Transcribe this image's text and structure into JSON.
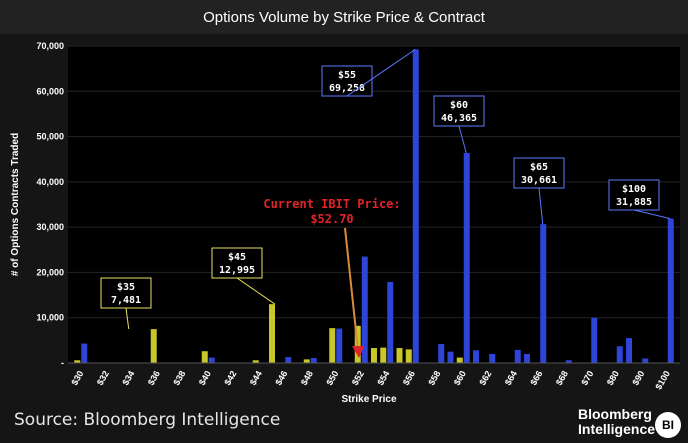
{
  "title": "Options Volume by Strike Price & Contract",
  "source": "Source: Bloomberg Intelligence",
  "brand": {
    "line1": "Bloomberg",
    "line2": "Intelligence",
    "badge": "BI"
  },
  "chart_data": {
    "type": "bar",
    "ylabel": "# of Options Contracts Traded",
    "xlabel": "Strike Price",
    "ylim": [
      0,
      70000
    ],
    "yticks": [
      0,
      10000,
      20000,
      30000,
      40000,
      50000,
      60000,
      70000
    ],
    "ytick_labels": [
      "-",
      "10,000",
      "20,000",
      "30,000",
      "40,000",
      "50,000",
      "60,000",
      "70,000"
    ],
    "x_tick_labels": [
      "$30",
      "$32",
      "$34",
      "$36",
      "$38",
      "$40",
      "$42",
      "$44",
      "$46",
      "$48",
      "$50",
      "$52",
      "$54",
      "$56",
      "$58",
      "$60",
      "$62",
      "$64",
      "$66",
      "$68",
      "$70",
      "$80",
      "$90",
      "$100"
    ],
    "series": [
      {
        "name": "Contract A",
        "color": "#c9c62a",
        "values": [
          600,
          0,
          0,
          7481,
          0,
          2600,
          0,
          600,
          0,
          800,
          7700,
          8200,
          3400,
          3000,
          0,
          1200,
          0,
          0,
          0,
          0,
          0,
          0,
          0,
          0
        ]
      },
      {
        "name": "Contract B",
        "color": "#2f45d8",
        "values": [
          4300,
          0,
          0,
          0,
          0,
          1200,
          0,
          0,
          1300,
          1100,
          7600,
          23500,
          17900,
          69258,
          4200,
          46365,
          2000,
          2900,
          30661,
          600,
          10000,
          3700,
          1000,
          31885
        ]
      }
    ],
    "extra_bars": [
      {
        "strike": "$44",
        "color": "#c9c62a",
        "value": 12995
      },
      {
        "strike": "$54",
        "color": "#c9c62a",
        "value": 3300
      },
      {
        "strike": "$52",
        "color": "#c9c62a",
        "value": 3300
      },
      {
        "strike": "$58",
        "color": "#2f45d8",
        "value": 2500
      },
      {
        "strike": "$60",
        "color": "#2f45d8",
        "value": 2800
      },
      {
        "strike": "$64",
        "color": "#2f45d8",
        "value": 2000
      },
      {
        "strike": "$80",
        "color": "#2f45d8",
        "value": 5500
      }
    ],
    "annotations": [
      {
        "label": "$35",
        "value": "7,481",
        "color": "#e8e060"
      },
      {
        "label": "$45",
        "value": "12,995",
        "color": "#e8e060"
      },
      {
        "label": "$55",
        "value": "69,258",
        "color": "#5b78ff"
      },
      {
        "label": "$60",
        "value": "46,365",
        "color": "#5b78ff"
      },
      {
        "label": "$65",
        "value": "30,661",
        "color": "#5b78ff"
      },
      {
        "label": "$100",
        "value": "31,885",
        "color": "#5b78ff"
      }
    ],
    "current_price": {
      "line1": "Current IBIT Price:",
      "line2": "$52.70",
      "color": "#e0242a"
    }
  }
}
